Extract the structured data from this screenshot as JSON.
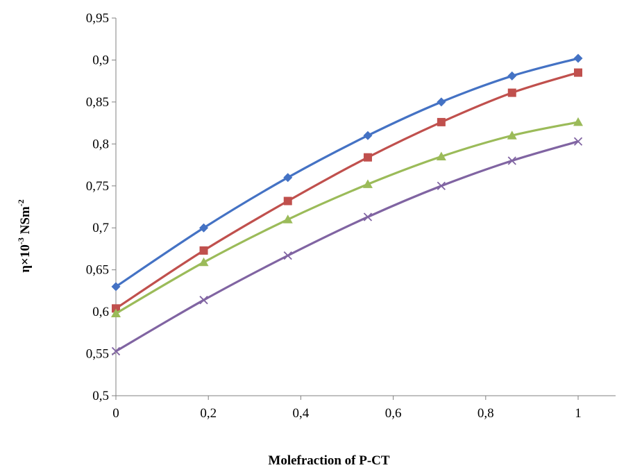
{
  "chart_data": {
    "type": "line",
    "title": "",
    "xlabel": "Molefraction of P-CT",
    "ylabel_main": "η×10",
    "ylabel_exp": "-3",
    "ylabel_unit": " NSm",
    "ylabel_unit_exp": "-2",
    "xlim": [
      0,
      1
    ],
    "ylim": [
      0.5,
      0.95
    ],
    "x_ticks": [
      0,
      0.2,
      0.4,
      0.6,
      0.8,
      1
    ],
    "x_tick_labels": [
      "0",
      "0,2",
      "0,4",
      "0,6",
      "0,8",
      "1"
    ],
    "y_ticks": [
      0.5,
      0.55,
      0.6,
      0.65,
      0.7,
      0.75,
      0.8,
      0.85,
      0.9,
      0.95
    ],
    "y_tick_labels": [
      "0,5",
      "0,55",
      "0,6",
      "0,65",
      "0,7",
      "0,75",
      "0,8",
      "0,85",
      "0,9",
      "0,95"
    ],
    "grid": false,
    "legend": "none",
    "x": [
      0,
      0.19,
      0.372,
      0.545,
      0.704,
      0.857,
      1
    ],
    "series": [
      {
        "marker": "diamond",
        "color": "#4472C4",
        "values": [
          0.63,
          0.7,
          0.76,
          0.81,
          0.85,
          0.881,
          0.902
        ]
      },
      {
        "marker": "square",
        "color": "#C0504D",
        "values": [
          0.604,
          0.673,
          0.732,
          0.784,
          0.826,
          0.861,
          0.885
        ]
      },
      {
        "marker": "triangle",
        "color": "#9BBB59",
        "values": [
          0.598,
          0.659,
          0.71,
          0.752,
          0.785,
          0.81,
          0.826
        ]
      },
      {
        "marker": "x",
        "color": "#8064A2",
        "values": [
          0.553,
          0.614,
          0.667,
          0.713,
          0.75,
          0.78,
          0.803
        ]
      }
    ]
  }
}
